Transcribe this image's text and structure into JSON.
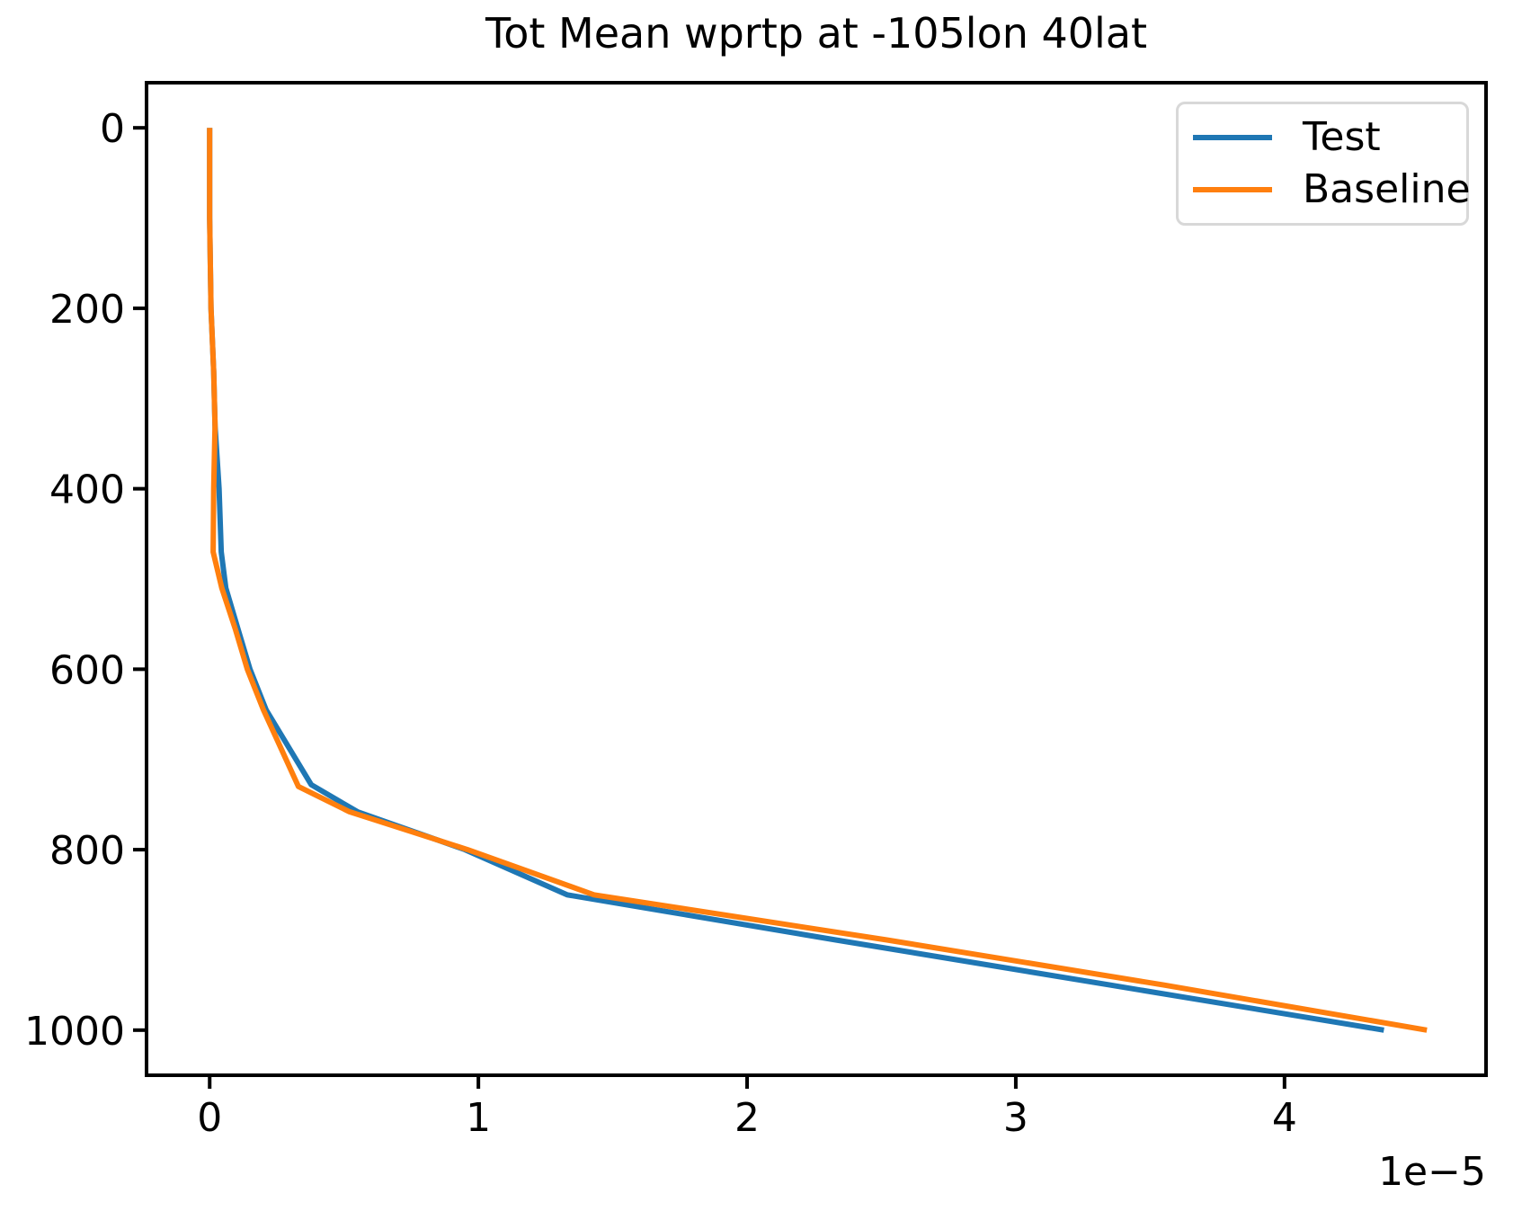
{
  "figure": {
    "background": "#ffffff"
  },
  "title": "Tot Mean wprtp at -105lon 40lat",
  "legend": {
    "position": "upper right",
    "entries": [
      {
        "label": "Test",
        "color": "#1f77b4"
      },
      {
        "label": "Baseline",
        "color": "#ff7f0e"
      }
    ]
  },
  "axes": {
    "x_tick_labels": [
      "0",
      "1",
      "2",
      "3",
      "4"
    ],
    "x_tick_values": [
      0,
      1,
      2,
      3,
      4
    ],
    "y_tick_labels": [
      "0",
      "200",
      "400",
      "600",
      "800",
      "1000"
    ],
    "y_tick_values": [
      0,
      200,
      400,
      600,
      800,
      1000
    ],
    "x_offset_label": "1e−5",
    "spine_color": "#000000",
    "tick_color": "#000000"
  },
  "chart_data": {
    "type": "line",
    "title": "Tot Mean wprtp at -105lon 40lat",
    "xlabel": "",
    "ylabel": "",
    "grid": false,
    "legend_position": "upper right",
    "x_scale_note": "x values are in units of 1e-5 (axis offset label 1e−5)",
    "xlim": [
      -0.235,
      4.75
    ],
    "ylim": [
      -50,
      1050
    ],
    "y_axis_inverted": true,
    "series": [
      {
        "name": "Test",
        "color": "#1f77b4",
        "x": [
          0.0,
          0.0,
          0.005,
          0.015,
          0.02,
          0.035,
          0.043,
          0.06,
          0.105,
          0.15,
          0.21,
          0.378,
          0.55,
          0.95,
          1.33,
          2.33,
          3.35,
          4.37
        ],
        "y": [
          0,
          100,
          200,
          270,
          330,
          400,
          470,
          510,
          555,
          600,
          645,
          728,
          758,
          800,
          850,
          900,
          950,
          1000
        ]
      },
      {
        "name": "Baseline",
        "color": "#ff7f0e",
        "x": [
          0.0,
          0.0,
          0.005,
          0.015,
          0.02,
          0.015,
          0.013,
          0.045,
          0.095,
          0.14,
          0.2,
          0.33,
          0.52,
          0.96,
          1.43,
          2.52,
          3.55,
          4.53
        ],
        "y": [
          0,
          100,
          200,
          270,
          330,
          400,
          470,
          510,
          555,
          600,
          645,
          730,
          758,
          800,
          850,
          900,
          950,
          1000
        ]
      }
    ]
  }
}
